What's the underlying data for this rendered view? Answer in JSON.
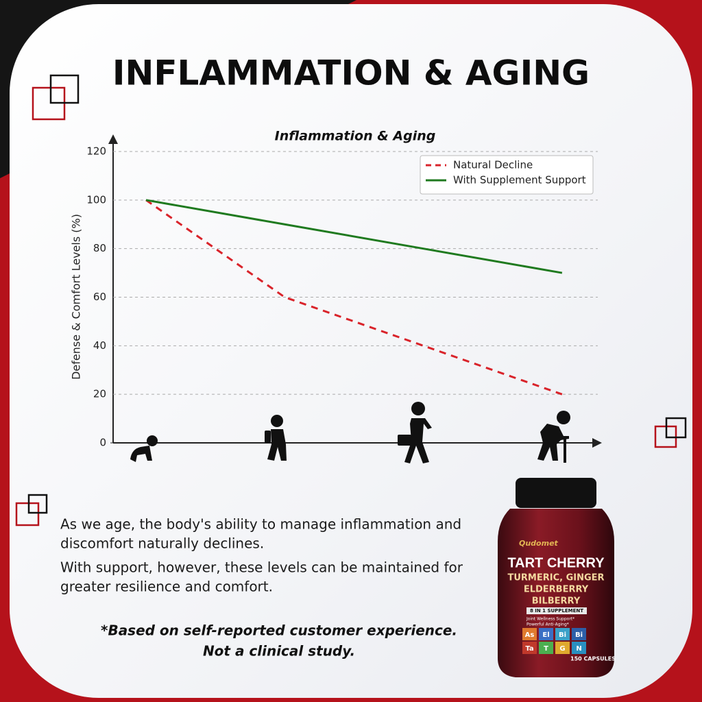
{
  "header": {
    "title": "INFLAMMATION & AGING"
  },
  "chart_data": {
    "type": "line",
    "title": "Inflammation & Aging",
    "y_label": "Defense & Comfort Levels (%)",
    "categories": [
      null,
      null,
      null,
      null
    ],
    "series": [
      {
        "name": "Natural Decline",
        "color": "#d9232a",
        "dashed": true,
        "values": [
          100,
          60,
          40,
          20
        ]
      },
      {
        "name": "With Supplement Support",
        "color": "#1f7a1f",
        "dashed": false,
        "values": [
          100,
          90,
          80,
          70
        ]
      }
    ],
    "ylim": [
      0,
      120
    ],
    "yticks": [
      0,
      20,
      40,
      60,
      80,
      100,
      120
    ],
    "grid": true,
    "legend": "upper right"
  },
  "body": {
    "paragraphs": [
      [
        "As we age, the body's ability to manage inflammation and",
        "discomfort naturally declines."
      ],
      [
        "With support, however, these levels can be maintained for",
        "greater resilience and comfort."
      ]
    ],
    "note": [
      "*Based on self-reported customer experience.",
      "Not a clinical study."
    ]
  },
  "product": {
    "brand": "Qudomet",
    "name": "TART CHERRY",
    "lines": [
      "TURMERIC, GINGER",
      "ELDERBERRY",
      "BILBERRY"
    ],
    "badge": "8 IN 1 SUPPLEMENT",
    "claims": [
      "Joint Wellness Support*",
      "Powerful Anti-Aging*"
    ],
    "tiles": [
      "As",
      "El",
      "Bi",
      "Bi",
      "Ta",
      "T",
      "G",
      "N"
    ],
    "count": "150 CAPSULES"
  }
}
